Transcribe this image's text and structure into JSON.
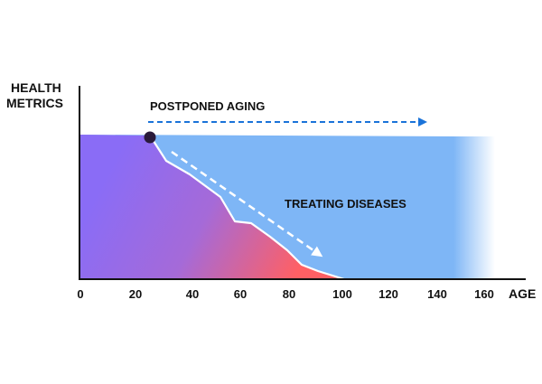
{
  "axes": {
    "y_label_line1": "HEALTH",
    "y_label_line2": "METRICS",
    "x_label": "AGE",
    "x_ticks": [
      "0",
      "20",
      "40",
      "60",
      "80",
      "100",
      "120",
      "140",
      "160"
    ]
  },
  "annotations": {
    "postponed_aging": "POSTPONED AGING",
    "treating_diseases": "TREATING DISEASES"
  },
  "colors": {
    "healthspan_fill": "#7eb6f6",
    "arrow_blue": "#1a73d9",
    "arrow_white": "#ffffff",
    "gradient_purple": "#8a6cf6",
    "gradient_red": "#ff6064",
    "start_marker": "#2a1a3a",
    "axis": "#111111"
  }
}
